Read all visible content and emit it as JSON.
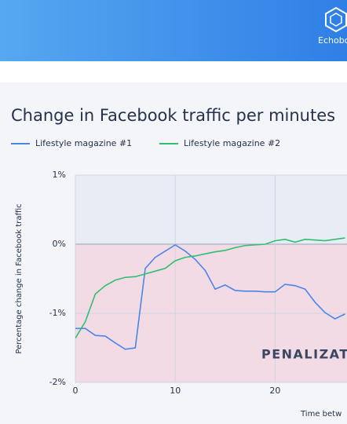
{
  "header": {
    "brand": "Echobo"
  },
  "chart_data": {
    "type": "line",
    "title": "Change in Facebook traffic per minutes",
    "ylabel": "Percentage change in Facebook traffic",
    "xlabel": "Time betw",
    "annotation": "PENALIZAT",
    "x": [
      0,
      1,
      2,
      3,
      4,
      5,
      6,
      7,
      8,
      9,
      10,
      11,
      12,
      13,
      14,
      15,
      16,
      17,
      18,
      19,
      20,
      21,
      22,
      23,
      24,
      25,
      26,
      27
    ],
    "series": [
      {
        "name": "Lifestyle magazine #1",
        "color": "#4a86e8",
        "values": [
          -1.22,
          -1.22,
          -1.32,
          -1.33,
          -1.43,
          -1.52,
          -1.5,
          -0.35,
          -0.19,
          -0.1,
          -0.01,
          -0.1,
          -0.22,
          -0.38,
          -0.65,
          -0.59,
          -0.67,
          -0.68,
          -0.68,
          -0.69,
          -0.69,
          -0.58,
          -0.6,
          -0.65,
          -0.84,
          -0.99,
          -1.08,
          -1.01
        ]
      },
      {
        "name": "Lifestyle magazine #2",
        "color": "#2fbf71",
        "values": [
          -1.36,
          -1.12,
          -0.72,
          -0.6,
          -0.52,
          -0.48,
          -0.47,
          -0.43,
          -0.39,
          -0.35,
          -0.24,
          -0.19,
          -0.17,
          -0.14,
          -0.11,
          -0.09,
          -0.05,
          -0.02,
          -0.01,
          0,
          0.05,
          0.07,
          0.03,
          0.07,
          0.06,
          0.05,
          0.07,
          0.09
        ]
      }
    ],
    "xlim": [
      0,
      27.2
    ],
    "ylim": [
      -2,
      1
    ],
    "xticks": [
      0,
      10,
      20
    ],
    "yticks": [
      {
        "value": -2,
        "label": "-2%"
      },
      {
        "value": -1,
        "label": "-1%"
      },
      {
        "value": 0,
        "label": "0%"
      },
      {
        "value": 1,
        "label": "1%"
      }
    ],
    "grid": true
  }
}
